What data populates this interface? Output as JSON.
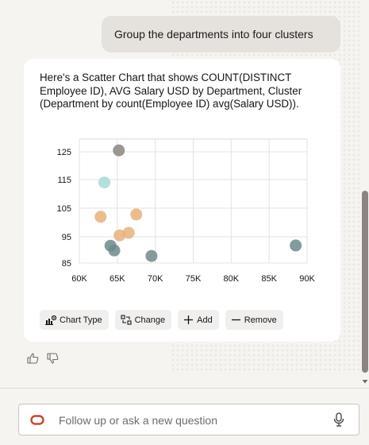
{
  "conversation": {
    "user_message": "Group the departments into four clusters",
    "answer_text": "Here's a Scatter Chart that shows COUNT(DISTINCT Employee ID), AVG Salary USD by Department, Cluster (Department by count(Employee ID) avg(Salary USD))."
  },
  "chart_data": {
    "type": "scatter",
    "x_ticks": [
      "60K",
      "65K",
      "70K",
      "75K",
      "80K",
      "85K",
      "90K"
    ],
    "y_ticks": [
      "125",
      "115",
      "105",
      "95",
      "85"
    ],
    "xlim": [
      60000,
      90000
    ],
    "ylim": [
      85,
      128
    ],
    "grid": true,
    "series": [
      {
        "color": "#8c8580",
        "points": [
          [
            65200,
            125.5
          ]
        ]
      },
      {
        "color": "#a9d8d6",
        "points": [
          [
            63300,
            114
          ]
        ]
      },
      {
        "color": "#e8b07c",
        "points": [
          [
            62800,
            102
          ],
          [
            67500,
            102.8
          ],
          [
            65300,
            95.5
          ],
          [
            66500,
            96.4
          ]
        ]
      },
      {
        "color": "#6f8a8c",
        "points": [
          [
            64100,
            91.6
          ],
          [
            64600,
            89.8
          ],
          [
            69500,
            87.7
          ],
          [
            88500,
            91.7
          ]
        ]
      }
    ]
  },
  "actions": {
    "chart_type": "Chart Type",
    "change": "Change",
    "add": "Add",
    "remove": "Remove"
  },
  "icons": {
    "chart_type": "chart-type-icon",
    "change": "change-icon",
    "add": "plus-icon",
    "remove": "minus-icon",
    "thumbs_up": "thumbs-up-icon",
    "thumbs_down": "thumbs-down-icon",
    "oracle": "oracle-logo-icon",
    "mic": "microphone-icon"
  },
  "composer": {
    "placeholder": "Follow up or ask a new question"
  },
  "colors": {
    "accent": "#c74634",
    "card": "#ffffff",
    "background": "#f6f4f1"
  }
}
